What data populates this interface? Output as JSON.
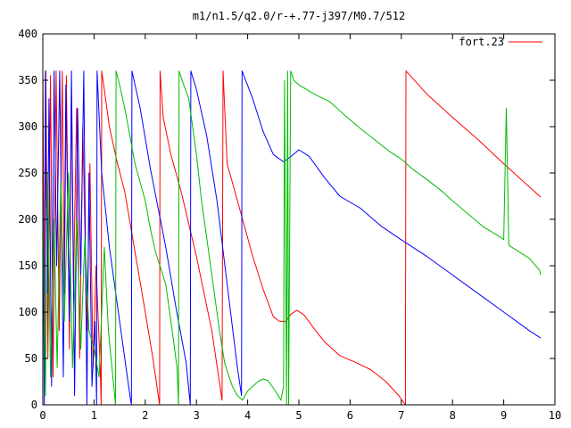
{
  "chart_data": {
    "type": "line",
    "title": "m1/n1.5/q2.0/r-+.77-j397/M0.7/512",
    "xlabel": "",
    "ylabel": "",
    "xlim": [
      0,
      10
    ],
    "ylim": [
      0,
      400
    ],
    "x_ticks": [
      "0",
      "1",
      "2",
      "3",
      "4",
      "5",
      "6",
      "7",
      "8",
      "9",
      "10"
    ],
    "y_ticks": [
      "0",
      "50",
      "100",
      "150",
      "200",
      "250",
      "300",
      "350",
      "400"
    ],
    "grid": false,
    "legend": {
      "position": "top-right",
      "entries": [
        "fort.23"
      ]
    },
    "series": [
      {
        "name": "fort.23",
        "color": "#ff0000",
        "points": [
          [
            0.0,
            360
          ],
          [
            0.04,
            40
          ],
          [
            0.06,
            360
          ],
          [
            0.1,
            50
          ],
          [
            0.15,
            355
          ],
          [
            0.2,
            30
          ],
          [
            0.26,
            360
          ],
          [
            0.32,
            80
          ],
          [
            0.38,
            360
          ],
          [
            0.42,
            120
          ],
          [
            0.46,
            355
          ],
          [
            0.52,
            60
          ],
          [
            0.56,
            340
          ],
          [
            0.6,
            130
          ],
          [
            0.66,
            320
          ],
          [
            0.72,
            50
          ],
          [
            0.78,
            300
          ],
          [
            0.86,
            80
          ],
          [
            0.92,
            260
          ],
          [
            0.98,
            40
          ],
          [
            1.04,
            150
          ],
          [
            1.12,
            40
          ],
          [
            1.14,
            0
          ],
          [
            1.15,
            360
          ],
          [
            1.2,
            340
          ],
          [
            1.3,
            300
          ],
          [
            1.45,
            262
          ],
          [
            1.6,
            230
          ],
          [
            1.8,
            165
          ],
          [
            2.0,
            100
          ],
          [
            2.15,
            50
          ],
          [
            2.28,
            0
          ],
          [
            2.29,
            360
          ],
          [
            2.35,
            310
          ],
          [
            2.5,
            270
          ],
          [
            2.7,
            230
          ],
          [
            3.0,
            160
          ],
          [
            3.3,
            80
          ],
          [
            3.5,
            5
          ],
          [
            3.52,
            360
          ],
          [
            3.6,
            260
          ],
          [
            3.7,
            240
          ],
          [
            3.9,
            200
          ],
          [
            4.1,
            160
          ],
          [
            4.3,
            125
          ],
          [
            4.5,
            95
          ],
          [
            4.62,
            90
          ],
          [
            4.74,
            90
          ],
          [
            4.85,
            98
          ],
          [
            4.96,
            102
          ],
          [
            5.1,
            97
          ],
          [
            5.3,
            82
          ],
          [
            5.5,
            68
          ],
          [
            5.8,
            53
          ],
          [
            6.1,
            46
          ],
          [
            6.4,
            38
          ],
          [
            6.7,
            25
          ],
          [
            6.95,
            10
          ],
          [
            7.08,
            0
          ],
          [
            7.09,
            360
          ],
          [
            7.5,
            335
          ],
          [
            8.0,
            310
          ],
          [
            8.5,
            286
          ],
          [
            9.0,
            260
          ],
          [
            9.5,
            235
          ],
          [
            9.72,
            224
          ]
        ]
      },
      {
        "name": "",
        "color": "#0000ff",
        "points": [
          [
            0.0,
            250
          ],
          [
            0.03,
            0
          ],
          [
            0.05,
            360
          ],
          [
            0.09,
            120
          ],
          [
            0.12,
            330
          ],
          [
            0.17,
            20
          ],
          [
            0.22,
            360
          ],
          [
            0.27,
            150
          ],
          [
            0.33,
            360
          ],
          [
            0.4,
            30
          ],
          [
            0.45,
            345
          ],
          [
            0.52,
            90
          ],
          [
            0.56,
            360
          ],
          [
            0.62,
            10
          ],
          [
            0.68,
            320
          ],
          [
            0.74,
            140
          ],
          [
            0.8,
            360
          ],
          [
            0.86,
            0
          ],
          [
            0.9,
            250
          ],
          [
            0.96,
            20
          ],
          [
            1.02,
            90
          ],
          [
            1.05,
            0
          ],
          [
            1.06,
            360
          ],
          [
            1.15,
            250
          ],
          [
            1.3,
            170
          ],
          [
            1.5,
            90
          ],
          [
            1.7,
            10
          ],
          [
            1.73,
            0
          ],
          [
            1.74,
            360
          ],
          [
            1.9,
            320
          ],
          [
            2.1,
            255
          ],
          [
            2.4,
            170
          ],
          [
            2.6,
            105
          ],
          [
            2.8,
            45
          ],
          [
            2.88,
            0
          ],
          [
            2.89,
            360
          ],
          [
            3.0,
            340
          ],
          [
            3.2,
            290
          ],
          [
            3.4,
            220
          ],
          [
            3.6,
            130
          ],
          [
            3.8,
            40
          ],
          [
            3.88,
            10
          ],
          [
            3.89,
            360
          ],
          [
            4.1,
            330
          ],
          [
            4.3,
            295
          ],
          [
            4.5,
            270
          ],
          [
            4.7,
            262
          ],
          [
            4.85,
            268
          ],
          [
            5.0,
            275
          ],
          [
            5.2,
            268
          ],
          [
            5.5,
            245
          ],
          [
            5.8,
            225
          ],
          [
            6.2,
            212
          ],
          [
            6.6,
            193
          ],
          [
            7.0,
            178
          ],
          [
            7.5,
            160
          ],
          [
            8.0,
            140
          ],
          [
            8.5,
            120
          ],
          [
            9.0,
            100
          ],
          [
            9.5,
            80
          ],
          [
            9.72,
            72
          ]
        ]
      },
      {
        "name": "",
        "color": "#00bb00",
        "points": [
          [
            0.0,
            220
          ],
          [
            0.05,
            10
          ],
          [
            0.1,
            250
          ],
          [
            0.15,
            30
          ],
          [
            0.22,
            200
          ],
          [
            0.28,
            40
          ],
          [
            0.35,
            240
          ],
          [
            0.42,
            90
          ],
          [
            0.5,
            250
          ],
          [
            0.58,
            40
          ],
          [
            0.66,
            200
          ],
          [
            0.74,
            60
          ],
          [
            0.82,
            180
          ],
          [
            0.9,
            80
          ],
          [
            1.0,
            60
          ],
          [
            1.1,
            30
          ],
          [
            1.2,
            170
          ],
          [
            1.28,
            80
          ],
          [
            1.35,
            40
          ],
          [
            1.42,
            0
          ],
          [
            1.43,
            360
          ],
          [
            1.5,
            345
          ],
          [
            1.6,
            320
          ],
          [
            1.7,
            290
          ],
          [
            1.8,
            260
          ],
          [
            1.9,
            240
          ],
          [
            2.0,
            220
          ],
          [
            2.1,
            190
          ],
          [
            2.2,
            165
          ],
          [
            2.4,
            130
          ],
          [
            2.55,
            70
          ],
          [
            2.62,
            40
          ],
          [
            2.65,
            0
          ],
          [
            2.66,
            360
          ],
          [
            2.75,
            345
          ],
          [
            2.85,
            330
          ],
          [
            3.0,
            270
          ],
          [
            3.1,
            220
          ],
          [
            3.2,
            180
          ],
          [
            3.35,
            120
          ],
          [
            3.45,
            80
          ],
          [
            3.55,
            45
          ],
          [
            3.7,
            20
          ],
          [
            3.8,
            10
          ],
          [
            3.9,
            5
          ],
          [
            4.0,
            15
          ],
          [
            4.1,
            20
          ],
          [
            4.2,
            25
          ],
          [
            4.3,
            28
          ],
          [
            4.4,
            26
          ],
          [
            4.55,
            14
          ],
          [
            4.65,
            5
          ],
          [
            4.7,
            20
          ],
          [
            4.72,
            350
          ],
          [
            4.76,
            0
          ],
          [
            4.78,
            360
          ],
          [
            4.8,
            0
          ],
          [
            4.84,
            360
          ],
          [
            4.9,
            350
          ],
          [
            5.0,
            345
          ],
          [
            5.3,
            335
          ],
          [
            5.6,
            327
          ],
          [
            5.9,
            312
          ],
          [
            6.2,
            298
          ],
          [
            6.5,
            285
          ],
          [
            6.8,
            272
          ],
          [
            7.0,
            265
          ],
          [
            7.2,
            255
          ],
          [
            7.5,
            243
          ],
          [
            7.8,
            230
          ],
          [
            8.0,
            220
          ],
          [
            8.3,
            206
          ],
          [
            8.6,
            192
          ],
          [
            8.9,
            182
          ],
          [
            9.0,
            178
          ],
          [
            9.05,
            320
          ],
          [
            9.1,
            172
          ],
          [
            9.3,
            165
          ],
          [
            9.5,
            158
          ],
          [
            9.7,
            145
          ],
          [
            9.72,
            140
          ]
        ]
      }
    ]
  }
}
